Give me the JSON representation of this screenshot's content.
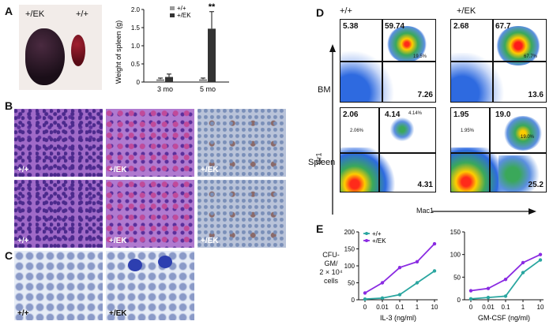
{
  "panels": {
    "A": "A",
    "B": "B",
    "C": "C",
    "D": "D",
    "E": "E"
  },
  "panel_a": {
    "photo_labels": [
      "+/EK",
      "+/+"
    ],
    "bar_chart": {
      "type": "bar",
      "ylabel": "Weight of spleen (g)",
      "categories": [
        "3 mo",
        "5 mo"
      ],
      "yticks": [
        "0",
        "0.5",
        "1.0",
        "1.5",
        "2.0"
      ],
      "ylim": [
        0,
        2.0
      ],
      "series": [
        {
          "name": "+/+",
          "color": "#9a9a9a",
          "values": [
            0.08,
            0.08
          ],
          "errors": [
            0.03,
            0.03
          ]
        },
        {
          "name": "+/EK",
          "color": "#333333",
          "values": [
            0.14,
            1.47
          ],
          "errors": [
            0.08,
            0.47
          ]
        }
      ],
      "annotation": "**"
    }
  },
  "panel_b": {
    "labels": [
      "+/+",
      "+/EK",
      "+/EK",
      "+/+",
      "+/EK",
      "+/EK"
    ]
  },
  "panel_c": {
    "labels": [
      "+/+",
      "+/EK"
    ]
  },
  "panel_d": {
    "col_headers": [
      "+/+",
      "+/EK"
    ],
    "row_labels": [
      "BM",
      "Spleen"
    ],
    "yaxis": "Gr1",
    "xaxis": "Mac1",
    "plots": [
      {
        "tl": "5.38",
        "tr": "59.74",
        "br": "7.26",
        "inner": "19.5%"
      },
      {
        "tl": "2.68",
        "tr": "67.7",
        "br": "13.6",
        "inner": "67.7%"
      },
      {
        "tl": "2.06",
        "tr": "4.14",
        "br": "4.31",
        "inner": "2.06%",
        "inner2": "4.14%"
      },
      {
        "tl": "1.95",
        "tr": "19.0",
        "br": "25.2",
        "inner": "1.95%",
        "inner2": "19.0%"
      }
    ]
  },
  "panel_e": {
    "ylabel": [
      "CFU-GM/",
      "2 × 10⁴ cells"
    ],
    "chart_data": [
      {
        "type": "line",
        "xlabel": "IL-3 (ng/ml)",
        "categories": [
          "0",
          "0.01",
          "0.1",
          "1",
          "10"
        ],
        "yticks": [
          "0",
          "50",
          "100",
          "150",
          "200"
        ],
        "ylim": [
          0,
          200
        ],
        "series": [
          {
            "name": "+/+",
            "color": "#2aa6a0",
            "values": [
              2,
              5,
              15,
              50,
              85
            ]
          },
          {
            "name": "+/EK",
            "color": "#8a2be2",
            "values": [
              20,
              50,
              95,
              112,
              165
            ]
          }
        ]
      },
      {
        "type": "line",
        "xlabel": "GM-CSF (ng/ml)",
        "categories": [
          "0",
          "0.01",
          "0.1",
          "1",
          "10"
        ],
        "yticks": [
          "0",
          "50",
          "100",
          "150"
        ],
        "ylim": [
          0,
          150
        ],
        "series": [
          {
            "name": "+/+",
            "color": "#2aa6a0",
            "values": [
              2,
              5,
              8,
              60,
              88
            ]
          },
          {
            "name": "+/EK",
            "color": "#8a2be2",
            "values": [
              20,
              25,
              45,
              82,
              100
            ]
          }
        ]
      }
    ]
  }
}
